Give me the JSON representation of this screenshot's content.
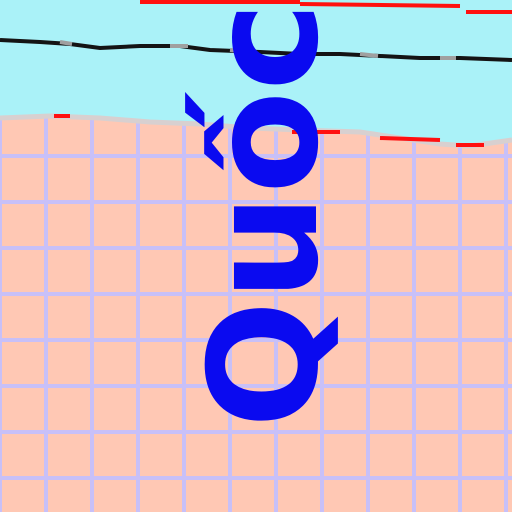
{
  "map": {
    "label": "Quốc",
    "colors": {
      "water": "#aaf2f8",
      "land": "#ffc8b4",
      "grid": "#c8c0f8",
      "label": "#0a0af0",
      "border_red": "#ff1010",
      "border_black": "#141414",
      "border_grey": "#a0a0a0",
      "coast": "#d8d0d0"
    }
  }
}
